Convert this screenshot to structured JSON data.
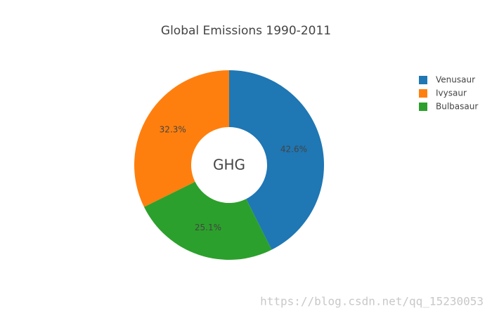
{
  "chart_data": {
    "type": "pie",
    "title": "Global Emissions 1990-2011",
    "categories": [
      "Venusaur",
      "Ivysaur",
      "Bulbasaur"
    ],
    "values": [
      42.6,
      32.3,
      25.1
    ],
    "value_labels": [
      "42.6%",
      "32.3%",
      "25.1%"
    ],
    "colors": [
      "#1f77b4",
      "#ff7f0e",
      "#2ca02c"
    ],
    "hole_label": "GHG",
    "watermark": "https://blog.csdn.net/qq_15230053",
    "legend": "top-right"
  }
}
